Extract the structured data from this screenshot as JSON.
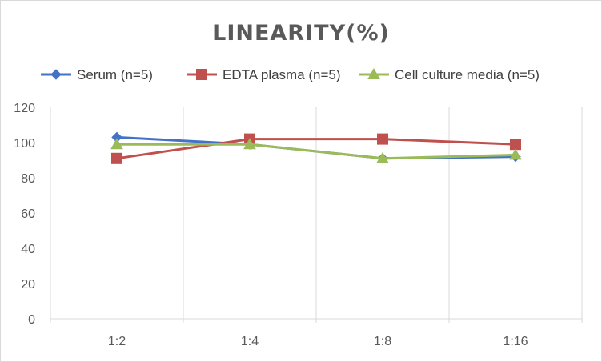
{
  "chart_data": {
    "type": "line",
    "title": "LINEARITY(%)",
    "xlabel": "",
    "ylabel": "",
    "categories": [
      "1:2",
      "1:4",
      "1:8",
      "1:16"
    ],
    "ylim": [
      0,
      120
    ],
    "yticks": [
      0,
      20,
      40,
      60,
      80,
      100,
      120
    ],
    "grid": "vertical",
    "legend_position": "top",
    "series": [
      {
        "name": "Serum (n=5)",
        "color": "#4472c4",
        "marker": "diamond",
        "values": [
          103,
          99,
          91,
          92
        ]
      },
      {
        "name": "EDTA plasma (n=5)",
        "color": "#c0504d",
        "marker": "square",
        "values": [
          91,
          102,
          102,
          99
        ]
      },
      {
        "name": "Cell culture media (n=5)",
        "color": "#9bbb59",
        "marker": "triangle",
        "values": [
          99,
          99,
          91,
          93
        ]
      }
    ]
  }
}
